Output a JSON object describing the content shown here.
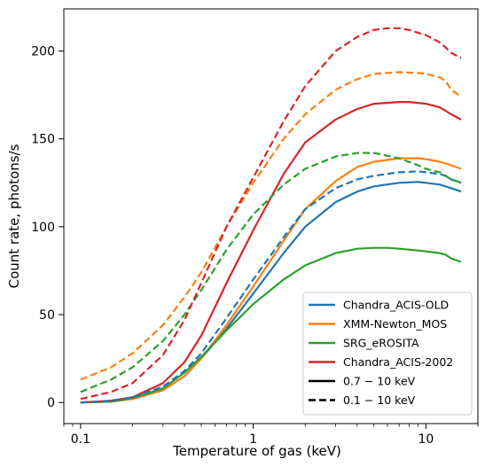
{
  "chart_data": {
    "type": "line",
    "title": "",
    "xlabel": "Temperature of gas (keV)",
    "ylabel": "Count rate, photons/s",
    "xscale": "log",
    "xlim": [
      0.08,
      20
    ],
    "ylim": [
      -12,
      224
    ],
    "xticks": [
      0.1,
      1,
      10
    ],
    "xtick_labels": [
      "0.1",
      "1",
      "10"
    ],
    "yticks": [
      0,
      50,
      100,
      150,
      200
    ],
    "ytick_labels": [
      "0",
      "50",
      "100",
      "150",
      "200"
    ],
    "grid": false,
    "legend_position": "lower-right",
    "series": [
      {
        "name": "Chandra_ACIS-OLD",
        "color": "#1f77b4",
        "band": "0.7-10",
        "x": [
          0.1,
          0.15,
          0.2,
          0.3,
          0.4,
          0.5,
          0.7,
          1,
          1.5,
          2,
          3,
          4,
          5,
          7,
          9,
          10,
          12,
          13,
          14,
          16
        ],
        "y": [
          0,
          0.5,
          2,
          7,
          15,
          25,
          42,
          62,
          85,
          100,
          114,
          120,
          123,
          125,
          125.5,
          125,
          124,
          123,
          122,
          120
        ]
      },
      {
        "name": "XMM-Newton_MOS",
        "color": "#ff7f0e",
        "band": "0.7-10",
        "x": [
          0.1,
          0.15,
          0.2,
          0.3,
          0.4,
          0.5,
          0.7,
          1,
          1.5,
          2,
          3,
          4,
          5,
          7,
          9,
          10,
          12,
          13,
          14,
          16
        ],
        "y": [
          0,
          0.5,
          2,
          7,
          15,
          25,
          44,
          66,
          92,
          110,
          126,
          134,
          137,
          139,
          139,
          138.5,
          137,
          136,
          135,
          133
        ]
      },
      {
        "name": "SRG_eROSITA",
        "color": "#2ca02c",
        "band": "0.7-10",
        "x": [
          0.1,
          0.15,
          0.2,
          0.3,
          0.4,
          0.5,
          0.7,
          1,
          1.5,
          2,
          3,
          4,
          5,
          6,
          7,
          9,
          10,
          12,
          13,
          14,
          16
        ],
        "y": [
          0,
          0.5,
          2.5,
          8,
          17,
          26,
          41,
          56,
          70,
          78,
          85,
          87.5,
          88,
          88,
          87.5,
          86.5,
          86,
          85,
          84,
          82,
          80
        ]
      },
      {
        "name": "Chandra_ACIS-2002",
        "color": "#d62728",
        "band": "0.7-10",
        "x": [
          0.1,
          0.15,
          0.2,
          0.3,
          0.4,
          0.5,
          0.7,
          1,
          1.5,
          2,
          3,
          4,
          5,
          7,
          8,
          9,
          10,
          12,
          13,
          14,
          16
        ],
        "y": [
          0,
          1,
          3,
          11,
          23,
          38,
          68,
          98,
          130,
          148,
          161,
          167,
          170,
          171,
          171,
          170.5,
          170,
          168,
          166,
          164,
          161
        ]
      },
      {
        "name": "",
        "color": "#1f77b4",
        "band": "0.1-10",
        "x": [
          0.1,
          0.15,
          0.2,
          0.3,
          0.4,
          0.5,
          0.7,
          1,
          1.5,
          2,
          3,
          4,
          5,
          7,
          9,
          10,
          12,
          13,
          14,
          16
        ],
        "y": [
          0,
          1,
          3,
          9,
          18,
          28,
          48,
          70,
          94,
          110,
          122,
          127,
          129,
          131,
          131.5,
          131,
          130,
          129,
          127,
          125
        ]
      },
      {
        "name": "",
        "color": "#ff7f0e",
        "band": "0.1-10",
        "x": [
          0.1,
          0.15,
          0.2,
          0.3,
          0.4,
          0.5,
          0.7,
          1,
          1.5,
          2,
          3,
          4,
          5,
          7,
          9,
          10,
          12,
          13,
          14,
          16
        ],
        "y": [
          13,
          20,
          28,
          44,
          60,
          74,
          100,
          125,
          150,
          164,
          178,
          184,
          187,
          188,
          187.5,
          187,
          185,
          183,
          178,
          174
        ]
      },
      {
        "name": "",
        "color": "#2ca02c",
        "band": "0.1-10",
        "x": [
          0.1,
          0.15,
          0.2,
          0.3,
          0.4,
          0.5,
          0.7,
          1,
          1.5,
          2,
          3,
          4,
          5,
          7,
          9,
          10,
          12,
          13,
          14,
          16
        ],
        "y": [
          6,
          13,
          20,
          35,
          50,
          64,
          87,
          107,
          124,
          133,
          140,
          142,
          142,
          139,
          135,
          133,
          131,
          129,
          127,
          125
        ]
      },
      {
        "name": "",
        "color": "#d62728",
        "band": "0.1-10",
        "x": [
          0.1,
          0.15,
          0.2,
          0.3,
          0.4,
          0.5,
          0.7,
          1,
          1.5,
          2,
          3,
          4,
          5,
          6,
          7,
          8,
          10,
          12,
          13,
          14,
          16
        ],
        "y": [
          2,
          6,
          11,
          27,
          47,
          68,
          100,
          128,
          160,
          180,
          200,
          208,
          212,
          213,
          213,
          212,
          209,
          205,
          202,
          199,
          196
        ]
      }
    ],
    "legend_entries": [
      {
        "label": "Chandra_ACIS-OLD",
        "color": "#1f77b4",
        "style": "solid"
      },
      {
        "label": "XMM-Newton_MOS",
        "color": "#ff7f0e",
        "style": "solid"
      },
      {
        "label": "SRG_eROSITA",
        "color": "#2ca02c",
        "style": "solid"
      },
      {
        "label": "Chandra_ACIS-2002",
        "color": "#d62728",
        "style": "solid"
      },
      {
        "label": "0.7 − 10 keV",
        "color": "#000000",
        "style": "solid"
      },
      {
        "label": "0.1 − 10 keV",
        "color": "#000000",
        "style": "dashed"
      }
    ]
  }
}
